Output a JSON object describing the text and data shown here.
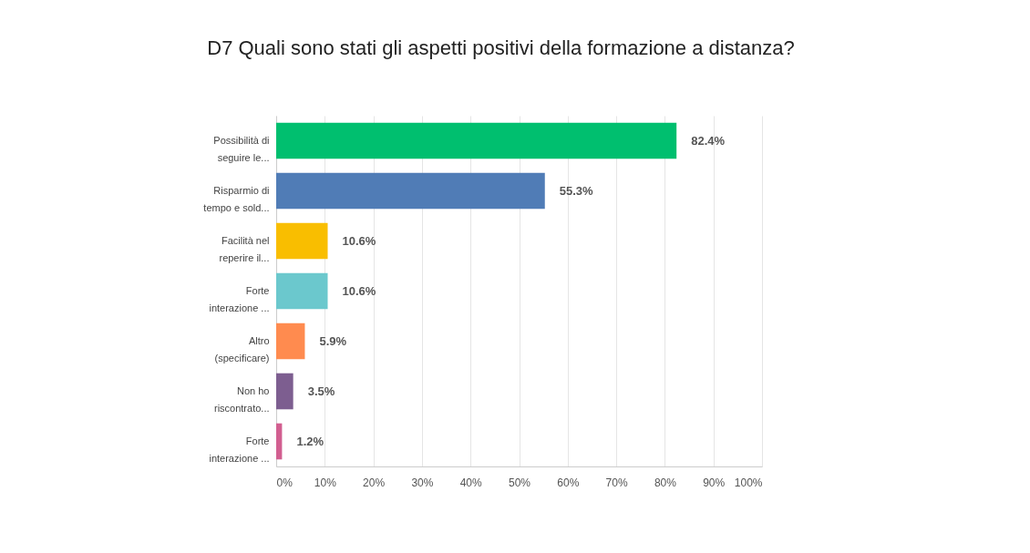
{
  "chart_data": {
    "type": "bar",
    "orientation": "horizontal",
    "title": "D7 Quali sono stati gli aspetti positivi della formazione a distanza?",
    "categories": [
      "Possibilità di\nseguire le...",
      "Risparmio di\ntempo e sold...",
      "Facilità nel\nreperire il...",
      "Forte\ninterazione ...",
      "Altro\n(specificare)",
      "Non ho\nriscontrato...",
      "Forte\ninterazione ..."
    ],
    "values": [
      82.4,
      55.3,
      10.6,
      10.6,
      5.9,
      3.5,
      1.2
    ],
    "colors": [
      "#00bf6f",
      "#507cb6",
      "#f9be00",
      "#6bc8cd",
      "#ff8b4f",
      "#7d5e90",
      "#d25f90"
    ],
    "value_labels": [
      "82.4%",
      "55.3%",
      "10.6%",
      "10.6%",
      "5.9%",
      "3.5%",
      "1.2%"
    ],
    "xlim": [
      0,
      100
    ],
    "xticks": [
      {
        "value": 0,
        "label": "0%"
      },
      {
        "value": 10,
        "label": "10%"
      },
      {
        "value": 20,
        "label": "20%"
      },
      {
        "value": 30,
        "label": "30%"
      },
      {
        "value": 40,
        "label": "40%"
      },
      {
        "value": 50,
        "label": "50%"
      },
      {
        "value": 60,
        "label": "60%"
      },
      {
        "value": 70,
        "label": "70%"
      },
      {
        "value": 80,
        "label": "80%"
      },
      {
        "value": 90,
        "label": "90%"
      },
      {
        "value": 100,
        "label": "100%"
      }
    ],
    "grid": "x"
  }
}
